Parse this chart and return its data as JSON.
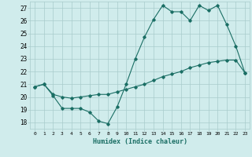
{
  "xlabel": "Humidex (Indice chaleur)",
  "bg_color": "#d0ecec",
  "grid_color": "#a8cccc",
  "line_color": "#1a6e64",
  "xlim": [
    -0.5,
    23.5
  ],
  "ylim": [
    17.5,
    27.5
  ],
  "yticks": [
    18,
    19,
    20,
    21,
    22,
    23,
    24,
    25,
    26,
    27
  ],
  "xticks": [
    0,
    1,
    2,
    3,
    4,
    5,
    6,
    7,
    8,
    9,
    10,
    11,
    12,
    13,
    14,
    15,
    16,
    17,
    18,
    19,
    20,
    21,
    22,
    23
  ],
  "line1_x": [
    0,
    1,
    2,
    3,
    4,
    5,
    6,
    7,
    8,
    9,
    10,
    11,
    12,
    13,
    14,
    15,
    16,
    17,
    18,
    19,
    20,
    21,
    22,
    23
  ],
  "line1_y": [
    20.8,
    21.0,
    20.1,
    19.1,
    19.1,
    19.1,
    18.8,
    18.1,
    17.9,
    19.2,
    21.0,
    23.0,
    24.7,
    26.1,
    27.2,
    26.7,
    26.7,
    26.0,
    27.2,
    26.8,
    27.2,
    25.7,
    24.0,
    21.9
  ],
  "line2_x": [
    0,
    1,
    2,
    3,
    4,
    5,
    6,
    7,
    8,
    9,
    10,
    11,
    12,
    13,
    14,
    15,
    16,
    17,
    18,
    19,
    20,
    21,
    22,
    23
  ],
  "line2_y": [
    20.8,
    21.0,
    20.2,
    20.0,
    19.9,
    20.0,
    20.1,
    20.2,
    20.2,
    20.4,
    20.6,
    20.8,
    21.0,
    21.3,
    21.6,
    21.8,
    22.0,
    22.3,
    22.5,
    22.7,
    22.8,
    22.9,
    22.9,
    21.9
  ]
}
